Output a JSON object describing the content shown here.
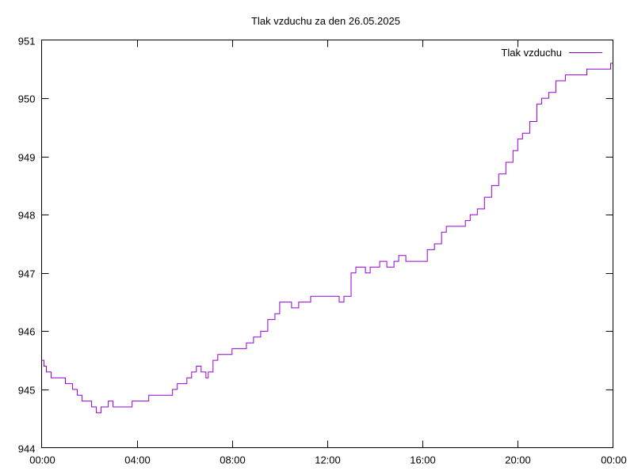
{
  "chart_data": {
    "type": "line",
    "title": "Tlak vzduchu za den 26.05.2025",
    "xlabel": "",
    "ylabel": "",
    "xlim": [
      0,
      24
    ],
    "ylim": [
      944,
      951
    ],
    "grid": false,
    "legend_position": "top-right",
    "x_ticks": [
      0,
      4,
      8,
      12,
      16,
      20,
      24
    ],
    "x_tick_labels": [
      "00:00",
      "04:00",
      "08:00",
      "12:00",
      "16:00",
      "20:00",
      "00:00"
    ],
    "y_ticks": [
      944,
      945,
      946,
      947,
      948,
      949,
      950,
      951
    ],
    "y_tick_labels": [
      "944",
      "945",
      "946",
      "947",
      "948",
      "949",
      "950",
      "951"
    ],
    "series": [
      {
        "name": "Tlak vzduchu",
        "color": "#9400d3",
        "x": [
          0.0,
          0.1,
          0.2,
          0.4,
          0.8,
          1.0,
          1.3,
          1.5,
          1.7,
          1.9,
          2.1,
          2.3,
          2.5,
          2.6,
          2.8,
          3.0,
          3.2,
          3.5,
          3.8,
          4.0,
          4.3,
          4.5,
          4.8,
          5.1,
          5.2,
          5.5,
          5.7,
          5.9,
          6.1,
          6.3,
          6.5,
          6.7,
          6.9,
          7.0,
          7.2,
          7.4,
          7.5,
          7.7,
          8.0,
          8.3,
          8.6,
          8.9,
          9.2,
          9.5,
          9.8,
          10.0,
          10.2,
          10.5,
          10.8,
          11.0,
          11.3,
          11.5,
          11.8,
          12.0,
          12.2,
          12.5,
          12.7,
          13.0,
          13.2,
          13.4,
          13.6,
          13.8,
          14.0,
          14.2,
          14.5,
          14.8,
          15.0,
          15.3,
          15.6,
          15.9,
          16.2,
          16.5,
          16.8,
          17.0,
          17.2,
          17.5,
          17.8,
          18.0,
          18.3,
          18.6,
          18.9,
          19.2,
          19.5,
          19.8,
          20.0,
          20.2,
          20.5,
          20.8,
          21.0,
          21.3,
          21.6,
          21.8,
          22.0,
          22.3,
          22.6,
          22.9,
          23.2,
          23.5,
          23.7,
          23.9,
          24.0
        ],
        "values": [
          945.5,
          945.4,
          945.3,
          945.2,
          945.2,
          945.1,
          945.0,
          944.9,
          944.8,
          944.8,
          944.7,
          944.6,
          944.7,
          944.7,
          944.8,
          944.7,
          944.7,
          944.7,
          944.8,
          944.8,
          944.8,
          944.9,
          944.9,
          944.9,
          944.9,
          945.0,
          945.1,
          945.1,
          945.2,
          945.3,
          945.4,
          945.3,
          945.2,
          945.3,
          945.5,
          945.6,
          945.6,
          945.6,
          945.7,
          945.7,
          945.8,
          945.9,
          946.0,
          946.2,
          946.3,
          946.5,
          946.5,
          946.4,
          946.5,
          946.5,
          946.6,
          946.6,
          946.6,
          946.6,
          946.6,
          946.5,
          946.6,
          947.0,
          947.1,
          947.1,
          947.0,
          947.1,
          947.1,
          947.2,
          947.1,
          947.2,
          947.3,
          947.2,
          947.2,
          947.2,
          947.4,
          947.5,
          947.7,
          947.8,
          947.8,
          947.8,
          947.9,
          948.0,
          948.1,
          948.3,
          948.5,
          948.7,
          948.9,
          949.1,
          949.3,
          949.4,
          949.6,
          949.9,
          950.0,
          950.1,
          950.3,
          950.3,
          950.4,
          950.4,
          950.4,
          950.5,
          950.5,
          950.5,
          950.5,
          950.6,
          950.6
        ]
      }
    ]
  }
}
